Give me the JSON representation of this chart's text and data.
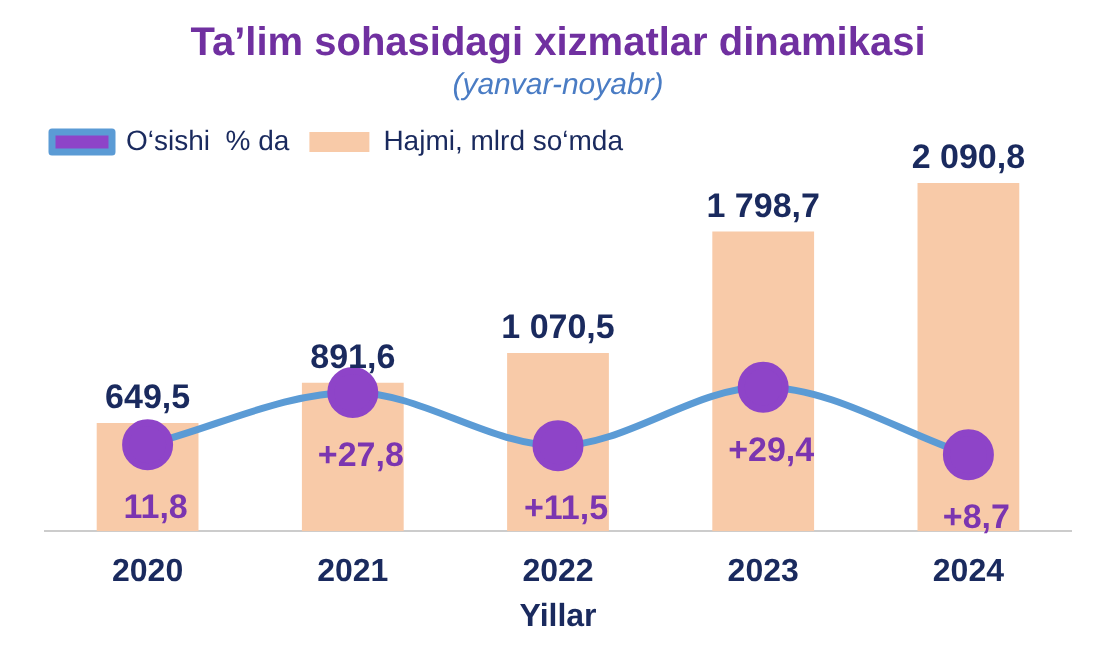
{
  "chart_data": {
    "type": "bar",
    "title": "Ta’lim sohasidagi xizmatlar dinamikasi",
    "subtitle": "(yanvar-noyabr)",
    "xlabel": "Yillar",
    "categories": [
      "2020",
      "2021",
      "2022",
      "2023",
      "2024"
    ],
    "legend": "top left",
    "series": [
      {
        "name": "Hajmi, mlrd so‘mda",
        "color": "#f8caa8",
        "values": [
          649.5,
          891.6,
          1070.5,
          1798.7,
          2090.8
        ],
        "value_labels": [
          "649,5",
          "891,6",
          "1 070,5",
          "1 798,7",
          "2 090,8"
        ]
      },
      {
        "name": "O‘sishi  % da",
        "type": "line",
        "axis": "y2",
        "color": "#5b9bd5",
        "colors": [
          "#8e44c8",
          "#8e44c8",
          "#8e44c8",
          "#8e44c8",
          "#8e44c8"
        ],
        "marker": "circle",
        "values": [
          11.8,
          27.8,
          11.5,
          29.4,
          8.7
        ],
        "value_labels": [
          "11,8",
          "+27,8",
          "+11,5",
          "+29,4",
          "+8,7"
        ]
      }
    ],
    "tick_labels": "x"
  }
}
